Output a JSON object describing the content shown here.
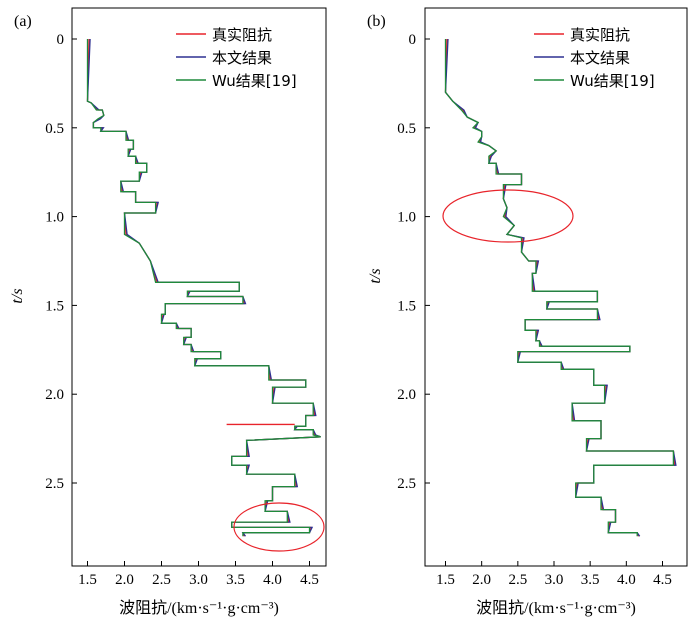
{
  "panels": [
    {
      "panel_label": "(a)",
      "xlabel": "波阻抗/(km·s⁻¹·g·cm⁻³)",
      "ylabel": "t/s",
      "xticks": [
        "1.5",
        "2.0",
        "2.5",
        "3.0",
        "3.5",
        "4.0",
        "4.5"
      ],
      "yticks": [
        "0",
        "0.5",
        "1.0",
        "1.5",
        "2.0",
        "2.5"
      ],
      "legend": [
        "真实阻抗",
        "本文结果",
        "Wu结果[19]"
      ]
    },
    {
      "panel_label": "(b)",
      "xlabel": "波阻抗/(km·s⁻¹·g·cm⁻³)",
      "ylabel": "t/s",
      "xticks": [
        "1.5",
        "2.0",
        "2.5",
        "3.0",
        "3.5",
        "4.0",
        "4.5"
      ],
      "yticks": [
        "0",
        "0.5",
        "1.0",
        "1.5",
        "2.0",
        "2.5"
      ],
      "legend": [
        "真实阻抗",
        "本文结果",
        "Wu结果[19]"
      ]
    }
  ],
  "colors": {
    "true": "#e8242b",
    "ours": "#2e3192",
    "wu": "#1f8a3b",
    "ellipse": "#e8242b"
  },
  "chart_data": [
    {
      "type": "line",
      "xlabel": "波阻抗/(km·s⁻¹·g·cm⁻³)",
      "ylabel": "t/s",
      "xlim": [
        1.3,
        4.9
      ],
      "ylim": [
        2.9,
        -0.1
      ],
      "y_inverted": true,
      "annotation": "red ellipse around t≈2.7–2.85 s, impedance ≈3.3–4.8",
      "series": [
        {
          "name": "真实阻抗",
          "color": "#e8242b",
          "points": []
        },
        {
          "name": "本文结果",
          "color": "#2e3192",
          "points": []
        },
        {
          "name": "Wu结果[19]",
          "color": "#1f8a3b",
          "points": [
            [
              1.5,
              0.0
            ],
            [
              1.5,
              0.35
            ],
            [
              1.55,
              0.36
            ],
            [
              1.62,
              0.4
            ],
            [
              1.7,
              0.4
            ],
            [
              1.72,
              0.43
            ],
            [
              1.64,
              0.45
            ],
            [
              1.58,
              0.47
            ],
            [
              1.58,
              0.5
            ],
            [
              1.68,
              0.5
            ],
            [
              1.68,
              0.52
            ],
            [
              2.02,
              0.52
            ],
            [
              2.02,
              0.57
            ],
            [
              2.12,
              0.57
            ],
            [
              2.12,
              0.62
            ],
            [
              2.05,
              0.62
            ],
            [
              2.05,
              0.66
            ],
            [
              2.15,
              0.66
            ],
            [
              2.15,
              0.7
            ],
            [
              2.3,
              0.7
            ],
            [
              2.3,
              0.75
            ],
            [
              2.2,
              0.75
            ],
            [
              2.2,
              0.8
            ],
            [
              1.95,
              0.8
            ],
            [
              1.95,
              0.86
            ],
            [
              2.15,
              0.86
            ],
            [
              2.15,
              0.92
            ],
            [
              2.42,
              0.92
            ],
            [
              2.42,
              0.98
            ],
            [
              2.0,
              0.98
            ],
            [
              2.0,
              1.1
            ],
            [
              2.2,
              1.15
            ],
            [
              2.35,
              1.25
            ],
            [
              2.42,
              1.37
            ],
            [
              3.55,
              1.37
            ],
            [
              3.55,
              1.42
            ],
            [
              2.85,
              1.42
            ],
            [
              2.85,
              1.45
            ],
            [
              3.6,
              1.45
            ],
            [
              3.6,
              1.49
            ],
            [
              2.55,
              1.49
            ],
            [
              2.55,
              1.55
            ],
            [
              2.5,
              1.55
            ],
            [
              2.5,
              1.6
            ],
            [
              2.7,
              1.6
            ],
            [
              2.7,
              1.63
            ],
            [
              2.9,
              1.63
            ],
            [
              2.9,
              1.68
            ],
            [
              2.8,
              1.68
            ],
            [
              2.8,
              1.72
            ],
            [
              2.9,
              1.72
            ],
            [
              2.9,
              1.76
            ],
            [
              3.3,
              1.76
            ],
            [
              3.3,
              1.8
            ],
            [
              2.95,
              1.8
            ],
            [
              2.95,
              1.84
            ],
            [
              3.95,
              1.84
            ],
            [
              3.95,
              1.92
            ],
            [
              4.45,
              1.92
            ],
            [
              4.45,
              1.96
            ],
            [
              4.0,
              1.96
            ],
            [
              4.0,
              2.05
            ],
            [
              4.55,
              2.05
            ],
            [
              4.55,
              2.12
            ],
            [
              4.45,
              2.12
            ],
            [
              4.45,
              2.18
            ],
            [
              4.3,
              2.18
            ],
            [
              4.3,
              2.2
            ],
            [
              4.55,
              2.2
            ],
            [
              4.55,
              2.23
            ],
            [
              4.65,
              2.24
            ],
            [
              3.65,
              2.26
            ],
            [
              3.65,
              2.35
            ],
            [
              3.45,
              2.35
            ],
            [
              3.45,
              2.4
            ],
            [
              3.65,
              2.4
            ],
            [
              3.65,
              2.45
            ],
            [
              4.3,
              2.45
            ],
            [
              4.3,
              2.52
            ],
            [
              4.0,
              2.52
            ],
            [
              4.0,
              2.6
            ],
            [
              3.9,
              2.6
            ],
            [
              3.9,
              2.66
            ],
            [
              4.2,
              2.66
            ],
            [
              4.2,
              2.72
            ],
            [
              3.45,
              2.72
            ],
            [
              3.45,
              2.75
            ],
            [
              4.5,
              2.75
            ],
            [
              4.5,
              2.78
            ],
            [
              3.6,
              2.78
            ],
            [
              3.6,
              2.8
            ]
          ]
        }
      ]
    },
    {
      "type": "line",
      "xlabel": "波阻抗/(km·s⁻¹·g·cm⁻³)",
      "ylabel": "t/s",
      "xlim": [
        1.3,
        4.9
      ],
      "ylim": [
        2.9,
        -0.1
      ],
      "y_inverted": true,
      "annotation": "red ellipse around t≈0.85–1.15 s, impedance ≈1.4–3.2",
      "series": [
        {
          "name": "真实阻抗",
          "color": "#e8242b",
          "points": []
        },
        {
          "name": "本文结果",
          "color": "#2e3192",
          "points": []
        },
        {
          "name": "Wu结果[19]",
          "color": "#1f8a3b",
          "points": [
            [
              1.5,
              0.0
            ],
            [
              1.5,
              0.3
            ],
            [
              1.6,
              0.35
            ],
            [
              1.72,
              0.4
            ],
            [
              1.8,
              0.44
            ],
            [
              1.95,
              0.47
            ],
            [
              1.88,
              0.5
            ],
            [
              2.0,
              0.52
            ],
            [
              2.0,
              0.55
            ],
            [
              1.95,
              0.58
            ],
            [
              2.1,
              0.6
            ],
            [
              2.2,
              0.63
            ],
            [
              2.1,
              0.66
            ],
            [
              2.1,
              0.7
            ],
            [
              2.2,
              0.7
            ],
            [
              2.2,
              0.76
            ],
            [
              2.55,
              0.76
            ],
            [
              2.55,
              0.82
            ],
            [
              2.3,
              0.82
            ],
            [
              2.3,
              0.9
            ],
            [
              2.35,
              0.95
            ],
            [
              2.3,
              1.0
            ],
            [
              2.45,
              1.05
            ],
            [
              2.35,
              1.1
            ],
            [
              2.55,
              1.12
            ],
            [
              2.55,
              1.2
            ],
            [
              2.65,
              1.25
            ],
            [
              2.75,
              1.25
            ],
            [
              2.75,
              1.32
            ],
            [
              2.7,
              1.32
            ],
            [
              2.7,
              1.42
            ],
            [
              3.6,
              1.42
            ],
            [
              3.6,
              1.48
            ],
            [
              2.9,
              1.48
            ],
            [
              2.9,
              1.52
            ],
            [
              3.6,
              1.52
            ],
            [
              3.6,
              1.58
            ],
            [
              2.6,
              1.58
            ],
            [
              2.6,
              1.64
            ],
            [
              2.75,
              1.64
            ],
            [
              2.75,
              1.7
            ],
            [
              2.8,
              1.7
            ],
            [
              2.8,
              1.73
            ],
            [
              4.05,
              1.73
            ],
            [
              4.05,
              1.76
            ],
            [
              2.5,
              1.76
            ],
            [
              2.5,
              1.82
            ],
            [
              3.1,
              1.82
            ],
            [
              3.1,
              1.86
            ],
            [
              3.55,
              1.86
            ],
            [
              3.55,
              1.95
            ],
            [
              3.7,
              1.95
            ],
            [
              3.7,
              2.05
            ],
            [
              3.25,
              2.05
            ],
            [
              3.25,
              2.15
            ],
            [
              3.65,
              2.15
            ],
            [
              3.65,
              2.25
            ],
            [
              3.45,
              2.25
            ],
            [
              3.45,
              2.32
            ],
            [
              4.65,
              2.32
            ],
            [
              4.65,
              2.4
            ],
            [
              3.55,
              2.4
            ],
            [
              3.55,
              2.5
            ],
            [
              3.3,
              2.5
            ],
            [
              3.3,
              2.58
            ],
            [
              3.65,
              2.58
            ],
            [
              3.65,
              2.65
            ],
            [
              3.85,
              2.65
            ],
            [
              3.85,
              2.72
            ],
            [
              3.75,
              2.72
            ],
            [
              3.75,
              2.78
            ],
            [
              4.15,
              2.78
            ],
            [
              4.15,
              2.8
            ]
          ]
        }
      ]
    }
  ]
}
